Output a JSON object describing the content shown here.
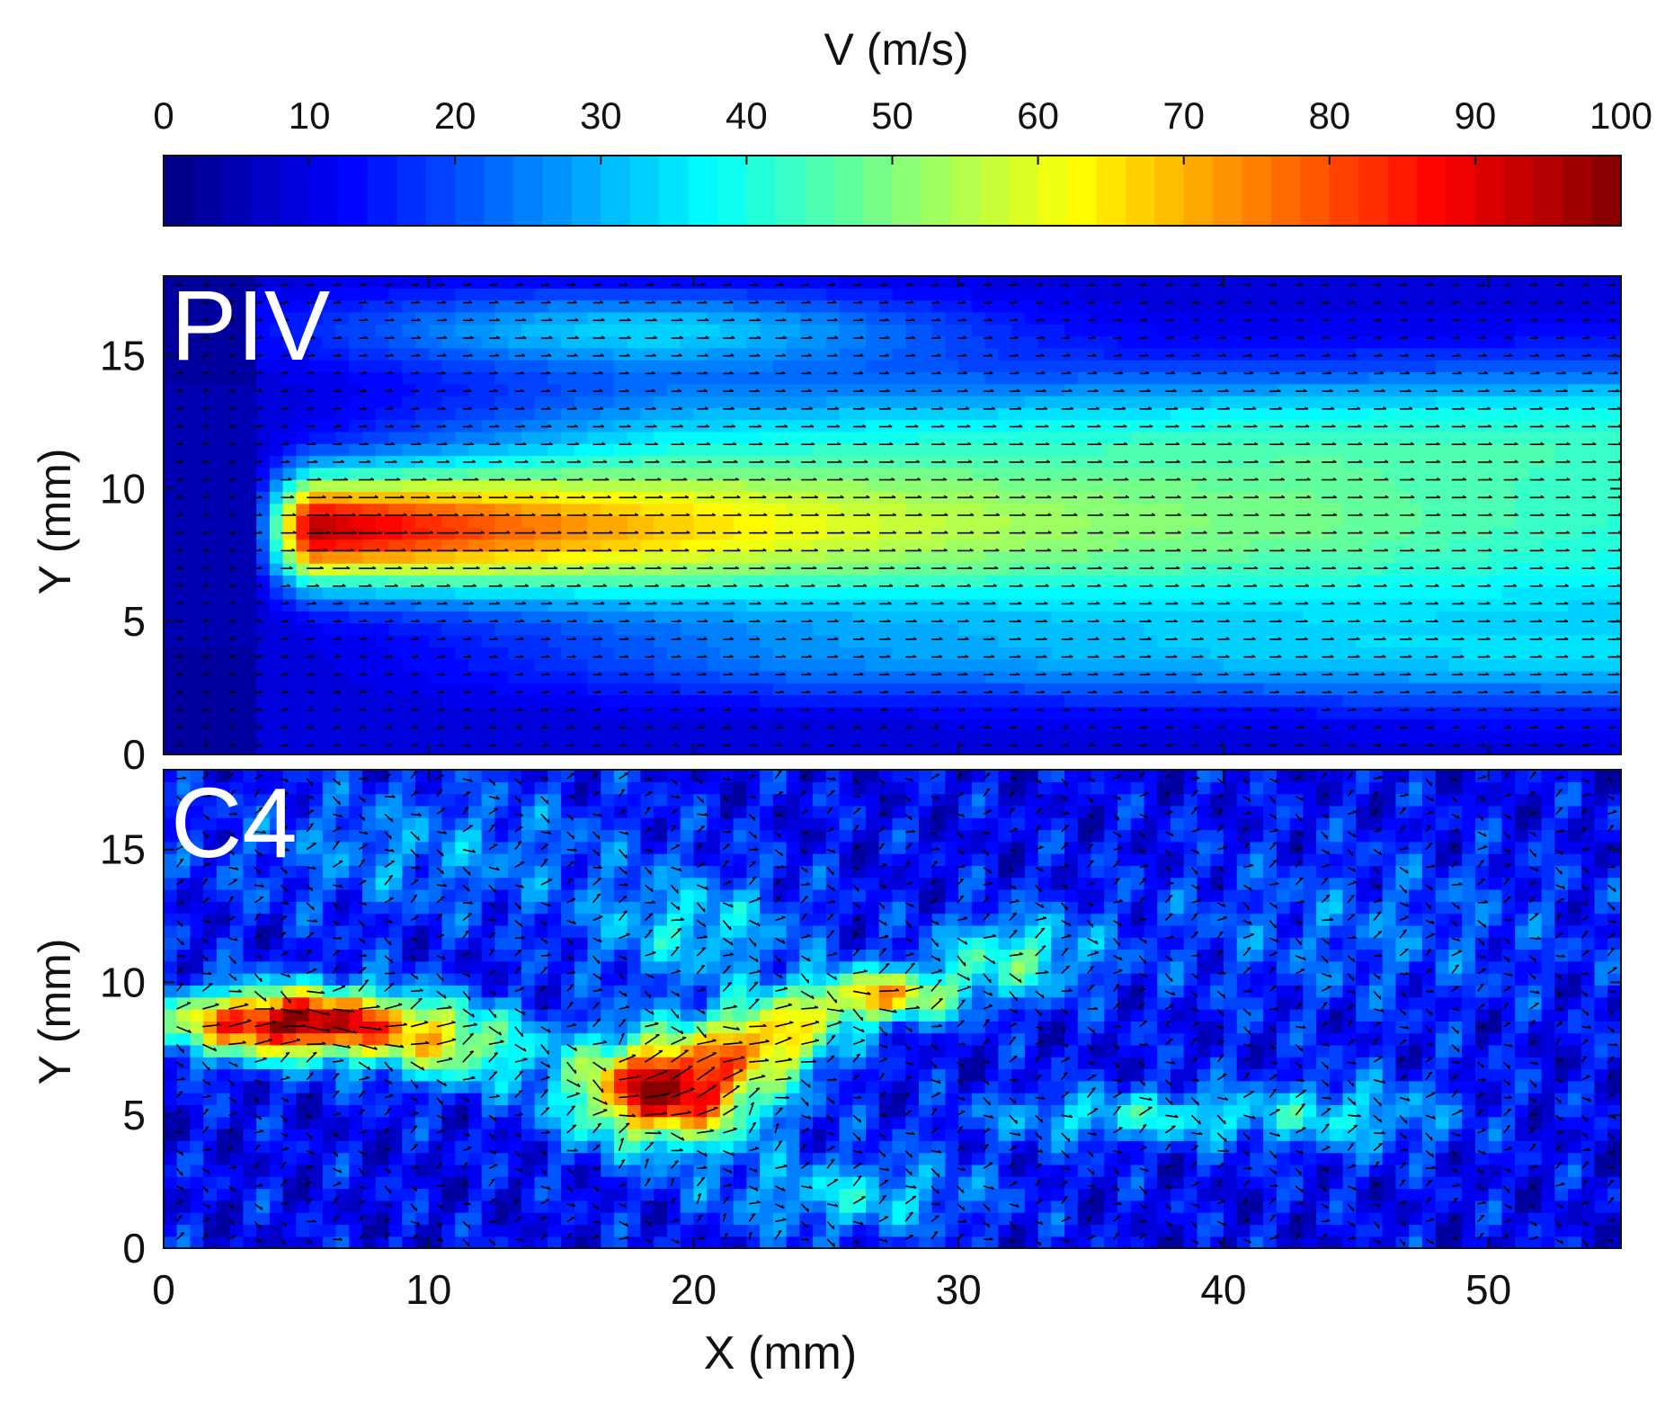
{
  "chart_data": [
    {
      "type": "heatmap",
      "title": "PIV",
      "xlabel": "",
      "ylabel": "Y (mm)",
      "xlim": [
        0,
        55
      ],
      "ylim": [
        0,
        18
      ],
      "yticks": [
        0,
        5,
        10,
        15
      ],
      "ytick_labels": [
        "0",
        "5",
        "10",
        "15"
      ],
      "field": "smooth-jet",
      "jet": {
        "x0": 4,
        "yc": 8.5,
        "peak": 92,
        "core_halfwidth": 1.7,
        "decay_length": 26,
        "spread": 0.05
      },
      "quiver": "overlaid velocity vectors pointing in +X"
    },
    {
      "type": "heatmap",
      "title": "C4",
      "xlabel": "X (mm)",
      "ylabel": "Y (mm)",
      "xlim": [
        0,
        55
      ],
      "ylim": [
        0,
        18
      ],
      "xticks": [
        0,
        10,
        20,
        30,
        40,
        50
      ],
      "xtick_labels": [
        "0",
        "10",
        "20",
        "30",
        "40",
        "50"
      ],
      "yticks": [
        0,
        5,
        10,
        15
      ],
      "ytick_labels": [
        "0",
        "5",
        "10",
        "15"
      ],
      "field": "turbulent-jet",
      "blobs": [
        {
          "x": 5,
          "y": 8.5,
          "sx": 5.0,
          "sy": 1.3,
          "v": 88
        },
        {
          "x": 11,
          "y": 7.5,
          "sx": 3.0,
          "sy": 1.4,
          "v": 35
        },
        {
          "x": 19,
          "y": 6.0,
          "sx": 3.5,
          "sy": 2.0,
          "v": 88
        },
        {
          "x": 23,
          "y": 8.0,
          "sx": 2.5,
          "sy": 1.4,
          "v": 50
        },
        {
          "x": 27,
          "y": 9.5,
          "sx": 3.0,
          "sy": 1.0,
          "v": 55
        },
        {
          "x": 32,
          "y": 11.0,
          "sx": 3.0,
          "sy": 1.5,
          "v": 30
        },
        {
          "x": 20,
          "y": 12.0,
          "sx": 4.0,
          "sy": 2.0,
          "v": 22
        },
        {
          "x": 37,
          "y": 5.0,
          "sx": 6.0,
          "sy": 1.0,
          "v": 25
        },
        {
          "x": 26,
          "y": 2.0,
          "sx": 5.0,
          "sy": 1.5,
          "v": 22
        },
        {
          "x": 45,
          "y": 5.0,
          "sx": 4.0,
          "sy": 1.5,
          "v": 18
        },
        {
          "x": 10,
          "y": 15.0,
          "sx": 8.0,
          "sy": 2.5,
          "v": 14
        },
        {
          "x": 45,
          "y": 12.0,
          "sx": 9.0,
          "sy": 3.0,
          "v": 10
        }
      ],
      "quiver": "overlaid turbulent velocity vectors"
    }
  ],
  "colorbar": {
    "label": "V (m/s)",
    "range": [
      0,
      100
    ],
    "ticks": [
      0,
      10,
      20,
      30,
      40,
      50,
      60,
      70,
      80,
      90,
      100
    ],
    "tick_labels": [
      "0",
      "10",
      "20",
      "30",
      "40",
      "50",
      "60",
      "70",
      "80",
      "90",
      "100"
    ],
    "colormap": "jet",
    "levels": 50
  },
  "colors": {
    "frame": "#111111",
    "panel_label": "#ffffff",
    "arrow": "#000000"
  }
}
